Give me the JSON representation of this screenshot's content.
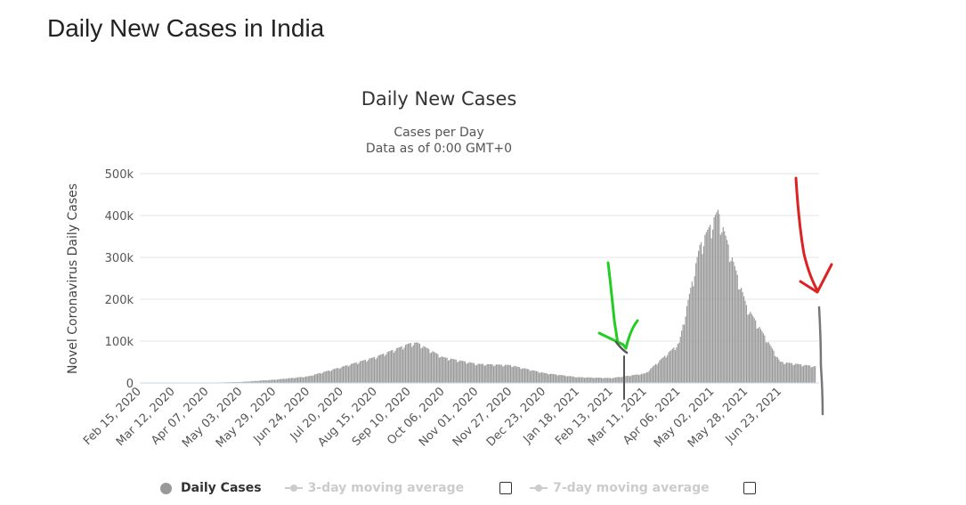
{
  "page": {
    "title": "Daily New Cases in India"
  },
  "chart_data": {
    "type": "bar",
    "title": "Daily New Cases",
    "subtitle_lines": [
      "Cases per Day",
      "Data as of 0:00 GMT+0"
    ],
    "ylabel": "Novel Coronavirus Daily Cases",
    "ylim": [
      0,
      500000
    ],
    "y_ticks": [
      0,
      100000,
      200000,
      300000,
      400000,
      500000
    ],
    "y_tick_labels": [
      "0",
      "100k",
      "200k",
      "300k",
      "400k",
      "500k"
    ],
    "x_tick_labels": [
      "Feb 15, 2020",
      "Mar 12, 2020",
      "Apr 07, 2020",
      "May 03, 2020",
      "May 29, 2020",
      "Jun 24, 2020",
      "Jul 20, 2020",
      "Aug 15, 2020",
      "Sep 10, 2020",
      "Oct 06, 2020",
      "Nov 01, 2020",
      "Nov 27, 2020",
      "Dec 23, 2020",
      "Jan 18, 2021",
      "Feb 13, 2021",
      "Mar 11, 2021",
      "Apr 06, 2021",
      "May 02, 2021",
      "May 28, 2021",
      "Jun 23, 2021"
    ],
    "x_start": "2020-02-15",
    "x_end": "2021-07-23",
    "series": [
      {
        "name": "Daily Cases",
        "color": "#999999",
        "points": [
          [
            "2020-02-15",
            0
          ],
          [
            "2020-03-12",
            20
          ],
          [
            "2020-04-07",
            600
          ],
          [
            "2020-05-03",
            2500
          ],
          [
            "2020-05-29",
            8000
          ],
          [
            "2020-06-24",
            16000
          ],
          [
            "2020-07-20",
            39000
          ],
          [
            "2020-08-15",
            63000
          ],
          [
            "2020-09-10",
            95000
          ],
          [
            "2020-09-16",
            97000
          ],
          [
            "2020-10-06",
            62000
          ],
          [
            "2020-11-01",
            46000
          ],
          [
            "2020-11-27",
            43000
          ],
          [
            "2020-12-23",
            24000
          ],
          [
            "2021-01-18",
            14000
          ],
          [
            "2021-02-13",
            12000
          ],
          [
            "2021-03-11",
            23000
          ],
          [
            "2021-04-06",
            96000
          ],
          [
            "2021-04-22",
            330000
          ],
          [
            "2021-05-02",
            390000
          ],
          [
            "2021-05-06",
            414000
          ],
          [
            "2021-05-28",
            186000
          ],
          [
            "2021-06-23",
            51000
          ],
          [
            "2021-07-20",
            40000
          ]
        ]
      }
    ],
    "legend": {
      "position": "bottom",
      "items": [
        {
          "label": "Daily Cases",
          "active": true
        },
        {
          "label": "3-day moving average",
          "active": false
        },
        {
          "label": "7-day moving average",
          "active": false
        }
      ]
    },
    "grid": true,
    "annotations": [
      {
        "type": "arrow",
        "color": "#22cc22"
      },
      {
        "type": "arrow",
        "color": "#dd2222"
      }
    ]
  }
}
